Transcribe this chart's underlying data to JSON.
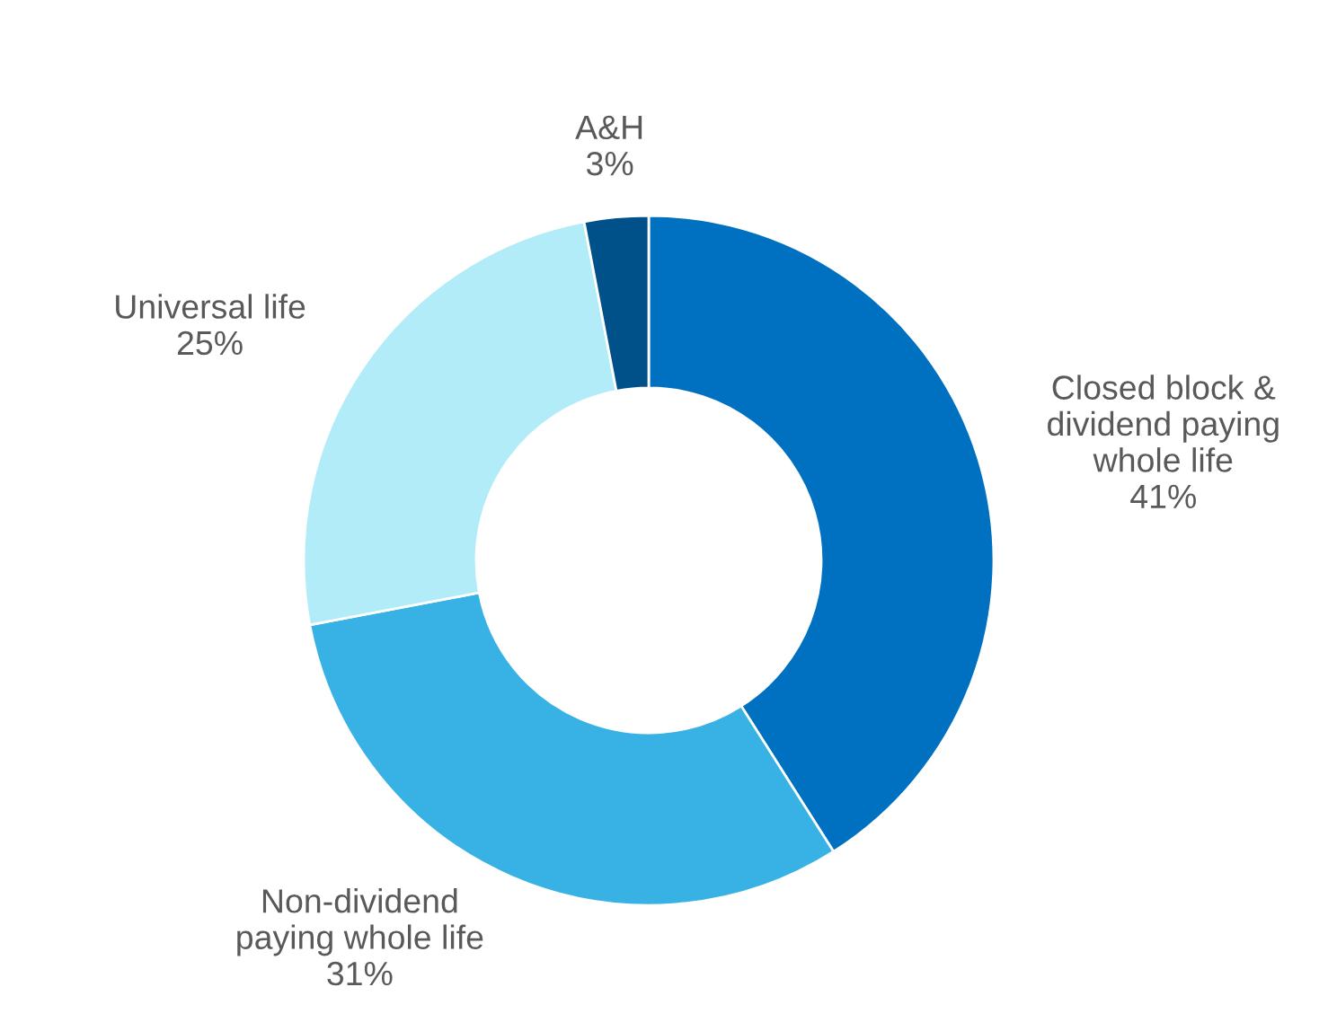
{
  "chart_data": {
    "type": "donut",
    "categories": [
      "Closed block &\ndividend paying\nwhole life",
      "Non-dividend\npaying whole life",
      "Universal life",
      "A&H"
    ],
    "values": [
      41,
      31,
      25,
      3
    ],
    "colors": [
      "#0070c0",
      "#38b2e4",
      "#b3ecf9",
      "#005089"
    ],
    "value_labels": [
      "41%",
      "31%",
      "25%",
      "3%"
    ]
  }
}
